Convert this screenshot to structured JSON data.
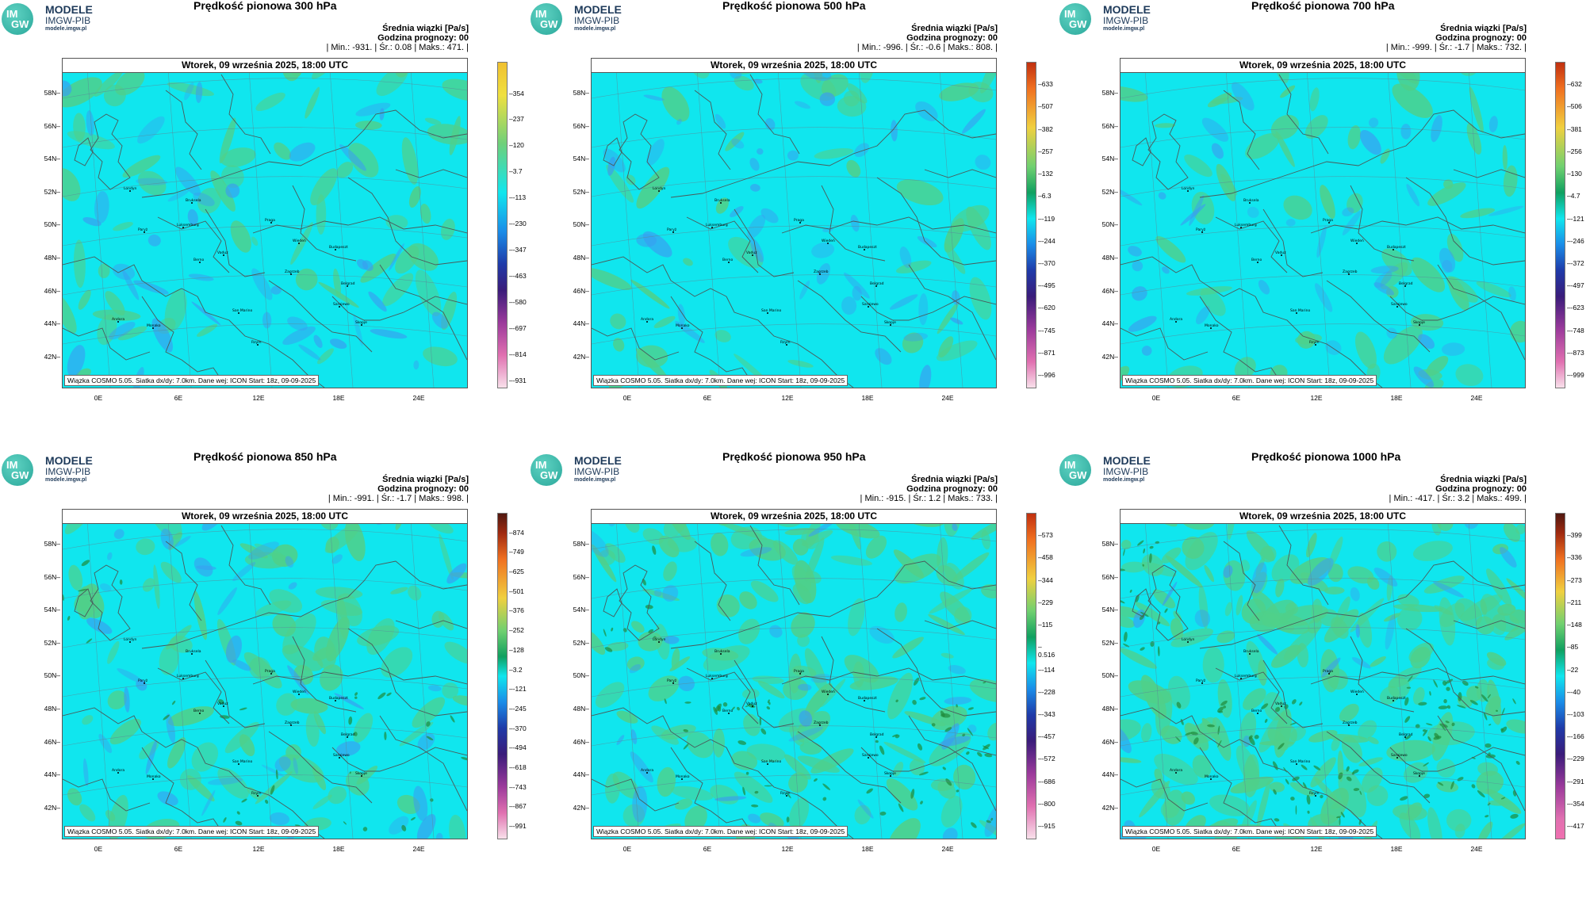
{
  "logo": {
    "mark_top": "IM",
    "mark_bottom": "GW",
    "line1": "MODELE",
    "line2": "IMGW-PIB",
    "line3": "modele.imgw.pl"
  },
  "common": {
    "units_line": "Średnia wiązki [Pa/s]",
    "forecast_hour": "Godzina prognozy: 00",
    "date_line": "Wtorek, 09 września 2025, 18:00 UTC",
    "footer": "Wiązka COSMO 5.05. Siatka dx/dy: 7.0km. Dane wej: ICON Start: 18z, 09-09-2025",
    "lat_ticks": [
      "58N",
      "56N",
      "54N",
      "52N",
      "50N",
      "48N",
      "46N",
      "44N",
      "42N"
    ],
    "lon_ticks": [
      "0E",
      "6E",
      "12E",
      "18E",
      "24E"
    ],
    "cities": [
      "Londyn",
      "Bruksela",
      "Luksemburg",
      "Paryż",
      "Praga",
      "Wiedeń",
      "Budapeszt",
      "Berno",
      "Vaduz",
      "Zagrzeb",
      "Belgrad",
      "San Marino",
      "Sarajewo",
      "Skopje",
      "Monako",
      "Andora",
      "Rzym"
    ]
  },
  "panels": [
    {
      "title": "Prędkość pionowa 300 hPa",
      "stats": "| Min.:  -931. | Śr.:   0.08 | Maks.:   471. |",
      "colorbar": [
        "354",
        "237",
        "120",
        "3.7",
        "-113",
        "-230",
        "-347",
        "-463",
        "-580",
        "-697",
        "-814",
        "-931"
      ],
      "field": {
        "green_fraction": 0.25,
        "blue_fraction": 0.2,
        "dark_green_fraction": 0.0
      }
    },
    {
      "title": "Prędkość pionowa 500 hPa",
      "stats": "| Min.:  -996. | Śr.:   -0.6 | Maks.:   808. |",
      "colorbar": [
        "633",
        "507",
        "382",
        "257",
        "132",
        "6.3",
        "-119",
        "-244",
        "-370",
        "-495",
        "-620",
        "-745",
        "-871",
        "-996"
      ],
      "field": {
        "green_fraction": 0.18,
        "blue_fraction": 0.22,
        "dark_green_fraction": 0.0
      }
    },
    {
      "title": "Prędkość pionowa 700 hPa",
      "stats": "| Min.:  -999. | Śr.:   -1.7 | Maks.:   732. |",
      "colorbar": [
        "632",
        "506",
        "381",
        "256",
        "130",
        "4.7",
        "-121",
        "-246",
        "-372",
        "-497",
        "-623",
        "-748",
        "-873",
        "-999"
      ],
      "field": {
        "green_fraction": 0.22,
        "blue_fraction": 0.18,
        "dark_green_fraction": 0.0
      }
    },
    {
      "title": "Prędkość pionowa 850 hPa",
      "stats": "| Min.:  -991. | Śr.:   -1.7 | Maks.:   998. |",
      "colorbar": [
        "874",
        "749",
        "625",
        "501",
        "376",
        "252",
        "128",
        "3.2",
        "-121",
        "-245",
        "-370",
        "-494",
        "-618",
        "-743",
        "-867",
        "-991"
      ],
      "field": {
        "green_fraction": 0.35,
        "blue_fraction": 0.2,
        "dark_green_fraction": 0.04
      }
    },
    {
      "title": "Prędkość pionowa 950 hPa",
      "stats": "| Min.:  -915. | Śr.:   1.2 | Maks.:   733. |",
      "colorbar": [
        "573",
        "458",
        "344",
        "229",
        "115",
        "0.516",
        "-114",
        "-228",
        "-343",
        "-457",
        "-572",
        "-686",
        "-800",
        "-915"
      ],
      "field": {
        "green_fraction": 0.5,
        "blue_fraction": 0.15,
        "dark_green_fraction": 0.08
      }
    },
    {
      "title": "Prędkość pionowa 1000 hPa",
      "stats": "| Min.:  -417. | Śr.:   3.2 | Maks.:   499. |",
      "colorbar": [
        "399",
        "336",
        "273",
        "211",
        "148",
        "85",
        "22",
        "-40",
        "-103",
        "-166",
        "-229",
        "-291",
        "-354",
        "-417"
      ],
      "field": {
        "green_fraction": 0.75,
        "blue_fraction": 0.1,
        "dark_green_fraction": 0.14
      }
    }
  ],
  "colors": {
    "cyan": "#10e6ee",
    "green": "#4fd08a",
    "dark_green": "#1f8a3a",
    "blue": "#3a9df0",
    "border": "#4a5a5a"
  }
}
